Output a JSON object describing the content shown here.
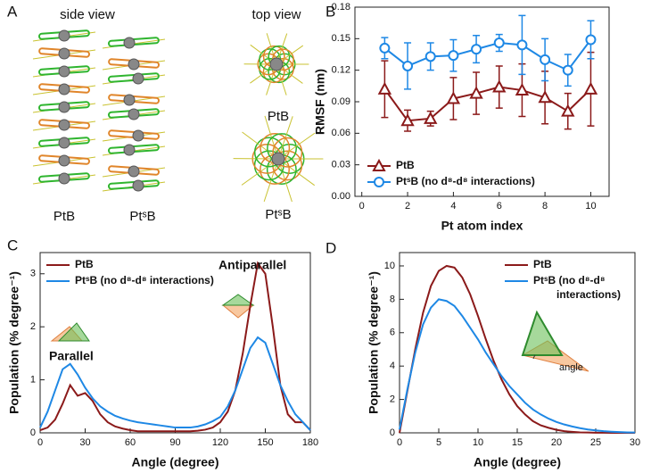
{
  "panel_a": {
    "label": "A",
    "side_view": "side view",
    "top_view": "top view",
    "labels": [
      "PtB",
      "PtˢB",
      "PtB",
      "PtˢB"
    ]
  },
  "chart_data": [
    {
      "type": "line",
      "panel": "B",
      "xlabel": "Pt atom index",
      "ylabel": "RMSF (nm)",
      "x": [
        1,
        2,
        3,
        4,
        5,
        6,
        7,
        8,
        9,
        10
      ],
      "xlim": [
        -0.3,
        10.8
      ],
      "xticks": [
        0,
        2,
        4,
        6,
        8,
        10
      ],
      "ylim": [
        0,
        0.18
      ],
      "yticks": [
        {
          "value": 0,
          "label": "0.00"
        },
        0.03,
        0.06,
        0.09,
        0.12,
        0.15,
        0.18
      ],
      "legend": "lower left",
      "series": [
        {
          "name": "PtB",
          "color": "#8b1a1a",
          "marker": "triangle",
          "values": [
            0.102,
            0.072,
            0.074,
            0.093,
            0.098,
            0.104,
            0.101,
            0.094,
            0.081,
            0.102
          ],
          "errors": [
            0.027,
            0.01,
            0.007,
            0.02,
            0.02,
            0.02,
            0.025,
            0.025,
            0.017,
            0.035
          ]
        },
        {
          "name": "PtˢB (no d⁸-d⁸ interactions)",
          "color": "#1e88e5",
          "marker": "circle",
          "values": [
            0.141,
            0.124,
            0.133,
            0.134,
            0.14,
            0.146,
            0.144,
            0.13,
            0.12,
            0.149
          ],
          "errors": [
            0.01,
            0.022,
            0.013,
            0.015,
            0.013,
            0.008,
            0.028,
            0.02,
            0.015,
            0.018
          ]
        }
      ]
    },
    {
      "type": "line",
      "panel": "C",
      "xlabel": "Angle (degree)",
      "ylabel": "Population (% degree⁻¹)",
      "x": [
        0,
        5,
        10,
        15,
        20,
        25,
        30,
        35,
        40,
        45,
        50,
        55,
        60,
        65,
        70,
        75,
        80,
        85,
        90,
        95,
        100,
        105,
        110,
        115,
        120,
        125,
        130,
        135,
        140,
        145,
        150,
        155,
        160,
        165,
        170,
        175,
        180
      ],
      "xlim": [
        0,
        180
      ],
      "xticks": [
        0,
        30,
        60,
        90,
        120,
        150,
        180
      ],
      "ylim": [
        0,
        3.4
      ],
      "yticks": [
        0,
        1,
        2,
        3
      ],
      "legend": "upper left",
      "annotations": [
        "Parallel",
        "Antiparallel"
      ],
      "series": [
        {
          "name": "PtB",
          "color": "#8b1a1a",
          "values": [
            0.05,
            0.1,
            0.25,
            0.55,
            0.9,
            0.7,
            0.75,
            0.6,
            0.35,
            0.2,
            0.12,
            0.08,
            0.05,
            0.03,
            0.03,
            0.03,
            0.03,
            0.03,
            0.03,
            0.03,
            0.03,
            0.04,
            0.06,
            0.1,
            0.2,
            0.4,
            0.8,
            1.5,
            2.4,
            3.2,
            3.0,
            2.0,
            0.9,
            0.35,
            0.2,
            0.2,
            0.05
          ]
        },
        {
          "name": "PtˢB (no d⁸-d⁸ interactions)",
          "color": "#1e88e5",
          "values": [
            0.1,
            0.4,
            0.8,
            1.2,
            1.3,
            1.1,
            0.85,
            0.65,
            0.5,
            0.4,
            0.32,
            0.27,
            0.23,
            0.2,
            0.18,
            0.16,
            0.14,
            0.12,
            0.1,
            0.1,
            0.1,
            0.12,
            0.16,
            0.22,
            0.3,
            0.5,
            0.8,
            1.2,
            1.6,
            1.8,
            1.7,
            1.3,
            0.9,
            0.6,
            0.35,
            0.2,
            0.05
          ]
        }
      ]
    },
    {
      "type": "line",
      "panel": "D",
      "xlabel": "Angle (degree)",
      "ylabel": "Population (% degree⁻¹)",
      "x": [
        0,
        1,
        2,
        3,
        4,
        5,
        6,
        7,
        8,
        9,
        10,
        11,
        12,
        13,
        14,
        15,
        16,
        17,
        18,
        19,
        20,
        21,
        22,
        23,
        24,
        25,
        26,
        27,
        28,
        29,
        30
      ],
      "xlim": [
        0,
        30
      ],
      "xticks": [
        0,
        5,
        10,
        15,
        20,
        25,
        30
      ],
      "ylim": [
        0,
        10.8
      ],
      "yticks": [
        0,
        2,
        4,
        6,
        8,
        10
      ],
      "legend": "upper right",
      "annotations": [
        "angle"
      ],
      "series": [
        {
          "name": "PtB",
          "color": "#8b1a1a",
          "values": [
            0,
            2.5,
            5,
            7.2,
            8.8,
            9.7,
            10.0,
            9.9,
            9.3,
            8.3,
            7.0,
            5.6,
            4.3,
            3.2,
            2.3,
            1.6,
            1.1,
            0.7,
            0.45,
            0.3,
            0.18,
            0.1,
            0.06,
            0.03,
            0.02,
            0.01,
            0.01,
            0,
            0,
            0,
            0
          ]
        },
        {
          "name": "PtˢB (no d⁸-d⁸ interactions)",
          "color": "#1e88e5",
          "values": [
            0.2,
            2.6,
            4.8,
            6.5,
            7.5,
            8.0,
            7.9,
            7.6,
            7.0,
            6.3,
            5.6,
            4.8,
            4.1,
            3.4,
            2.8,
            2.3,
            1.8,
            1.4,
            1.1,
            0.85,
            0.65,
            0.5,
            0.38,
            0.28,
            0.2,
            0.15,
            0.1,
            0.07,
            0.05,
            0.03,
            0.02
          ]
        }
      ]
    }
  ]
}
